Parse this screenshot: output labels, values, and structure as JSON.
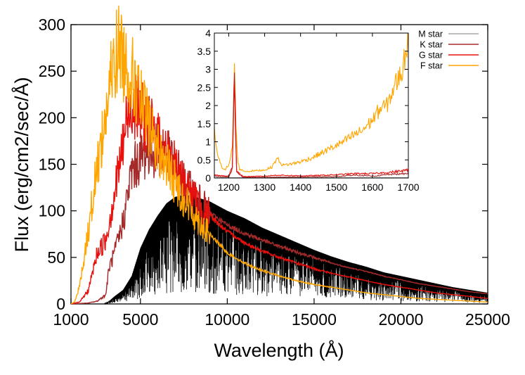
{
  "chart_data": [
    {
      "type": "line",
      "title": "",
      "xlabel": "Wavelength (Å)",
      "ylabel": "Flux (erg/cm2/sec/Å)",
      "xlim": [
        1000,
        25000
      ],
      "ylim": [
        0,
        300
      ],
      "x_ticks": [
        1000,
        5000,
        10000,
        15000,
        20000,
        25000
      ],
      "x_tick_labels": [
        "1000",
        "5000",
        "10000",
        "15000",
        "20000",
        "25000"
      ],
      "y_ticks": [
        0,
        50,
        100,
        150,
        200,
        250,
        300
      ],
      "y_tick_labels": [
        "0",
        "50",
        "100",
        "150",
        "200",
        "250",
        "300"
      ],
      "grid": false,
      "legend_position": "inside inset, top-right",
      "series": [
        {
          "name": "M star",
          "color": "#000000",
          "noisy": true,
          "x": [
            2900,
            3200,
            3500,
            4000,
            4500,
            5000,
            5500,
            6000,
            6500,
            7000,
            7500,
            8000,
            9000,
            10000,
            11000,
            12000,
            13000,
            14000,
            15000,
            16000,
            17000,
            18000,
            19000,
            20000,
            21000,
            22000,
            23000,
            24000,
            25000
          ],
          "y": [
            0,
            3,
            8,
            15,
            30,
            60,
            80,
            95,
            108,
            115,
            117,
            116,
            110,
            100,
            92,
            82,
            74,
            66,
            58,
            51,
            45,
            40,
            34,
            30,
            26,
            22,
            18,
            15,
            12
          ]
        },
        {
          "name": "K star",
          "color": "#a52a2a",
          "noisy": true,
          "x": [
            1000,
            2000,
            2500,
            3000,
            3200,
            3500,
            3800,
            4000,
            4500,
            5000,
            5500,
            6000,
            6500,
            7000,
            7500,
            8000,
            9000,
            10000,
            11000,
            12000,
            13000,
            14000,
            15000,
            16000,
            17000,
            18000,
            19000,
            20000,
            21000,
            22000,
            23000,
            24000,
            25000
          ],
          "y": [
            0,
            1,
            3,
            10,
            40,
            55,
            75,
            90,
            145,
            160,
            168,
            168,
            165,
            148,
            133,
            120,
            98,
            85,
            76,
            69,
            62,
            56,
            50,
            44,
            39,
            35,
            30,
            26,
            22,
            19,
            16,
            13,
            11
          ]
        },
        {
          "name": "G star",
          "color": "#e8100c",
          "noisy": true,
          "x": [
            1000,
            1500,
            2000,
            2500,
            3000,
            3500,
            4000,
            4200,
            4500,
            4800,
            5000,
            5500,
            6000,
            6500,
            7000,
            7500,
            8000,
            9000,
            10000,
            11000,
            12000,
            13000,
            14000,
            15000,
            16000,
            17000,
            18000,
            19000,
            20000,
            21000,
            22000,
            23000,
            24000,
            25000
          ],
          "y": [
            0,
            2,
            15,
            55,
            70,
            120,
            175,
            200,
            222,
            218,
            210,
            195,
            180,
            165,
            150,
            133,
            118,
            95,
            78,
            66,
            57,
            50,
            44,
            38,
            33,
            29,
            25,
            21,
            18,
            15,
            12,
            10,
            8,
            6
          ]
        },
        {
          "name": "F star",
          "color": "#ffa500",
          "noisy": true,
          "x": [
            1000,
            1200,
            1500,
            2000,
            2500,
            3000,
            3300,
            3600,
            3800,
            4000,
            4500,
            5000,
            5500,
            6000,
            6500,
            7000,
            7500,
            8000,
            9000,
            10000,
            11000,
            12000,
            13000,
            14000,
            15000,
            16000,
            17000,
            18000,
            19000,
            20000,
            21000,
            22000,
            23000,
            24000,
            25000
          ],
          "y": [
            0,
            2,
            20,
            80,
            150,
            205,
            245,
            275,
            280,
            270,
            250,
            220,
            195,
            170,
            152,
            133,
            115,
            100,
            75,
            55,
            44,
            36,
            30,
            25,
            21,
            18,
            15,
            12,
            10,
            8,
            6,
            5,
            4,
            3,
            2
          ]
        }
      ]
    },
    {
      "type": "line",
      "title": "",
      "xlabel": "",
      "ylabel": "",
      "xlim": [
        1160,
        1700
      ],
      "ylim": [
        0,
        4
      ],
      "x_ticks": [
        1200,
        1300,
        1400,
        1500,
        1600,
        1700
      ],
      "x_tick_labels": [
        "1200",
        "1300",
        "1400",
        "1500",
        "1600",
        "1700"
      ],
      "y_ticks": [
        0,
        0.5,
        1,
        1.5,
        2,
        2.5,
        3,
        3.5,
        4
      ],
      "y_tick_labels": [
        "0",
        "0.5",
        "1",
        "1.5",
        "2",
        "2.5",
        "3",
        "3.5",
        "4"
      ],
      "grid": false,
      "legend": [
        {
          "name": "M star",
          "color": "#a9a9a9"
        },
        {
          "name": "K star",
          "color": "#a52a2a"
        },
        {
          "name": "G star",
          "color": "#e8100c"
        },
        {
          "name": "F star",
          "color": "#ffa500"
        }
      ],
      "series": [
        {
          "name": "F star",
          "color": "#ffa500",
          "x": [
            1160,
            1170,
            1180,
            1190,
            1200,
            1205,
            1210,
            1212,
            1216,
            1220,
            1225,
            1230,
            1240,
            1250,
            1270,
            1300,
            1320,
            1335,
            1350,
            1380,
            1400,
            1430,
            1450,
            1480,
            1500,
            1520,
            1550,
            1570,
            1600,
            1620,
            1640,
            1660,
            1680,
            1690,
            1700
          ],
          "y": [
            1.3,
            0.6,
            0.3,
            0.25,
            0.35,
            0.5,
            0.9,
            1.5,
            3.2,
            1.4,
            0.5,
            0.25,
            0.2,
            0.18,
            0.2,
            0.22,
            0.3,
            0.55,
            0.35,
            0.4,
            0.45,
            0.55,
            0.65,
            0.8,
            0.9,
            1.0,
            1.2,
            1.3,
            1.6,
            1.9,
            2.0,
            2.5,
            2.9,
            3.3,
            4.0
          ]
        },
        {
          "name": "G star",
          "color": "#e8100c",
          "x": [
            1160,
            1200,
            1210,
            1216,
            1222,
            1240,
            1300,
            1335,
            1400,
            1450,
            1500,
            1550,
            1600,
            1640,
            1670,
            1700
          ],
          "y": [
            0.08,
            0.05,
            0.3,
            3.1,
            0.2,
            0.04,
            0.05,
            0.08,
            0.06,
            0.07,
            0.09,
            0.12,
            0.12,
            0.15,
            0.18,
            0.22
          ]
        },
        {
          "name": "K star",
          "color": "#a52a2a",
          "x": [
            1160,
            1200,
            1210,
            1216,
            1222,
            1240,
            1300,
            1400,
            1500,
            1550,
            1600,
            1650,
            1700
          ],
          "y": [
            0.05,
            0.03,
            0.25,
            2.9,
            0.15,
            0.02,
            0.02,
            0.03,
            0.04,
            0.08,
            0.05,
            0.1,
            0.12
          ]
        },
        {
          "name": "M star",
          "color": "#a9a9a9",
          "x": [
            1160,
            1300,
            1500,
            1700
          ],
          "y": [
            0.01,
            0.01,
            0.01,
            0.01
          ]
        }
      ]
    }
  ]
}
